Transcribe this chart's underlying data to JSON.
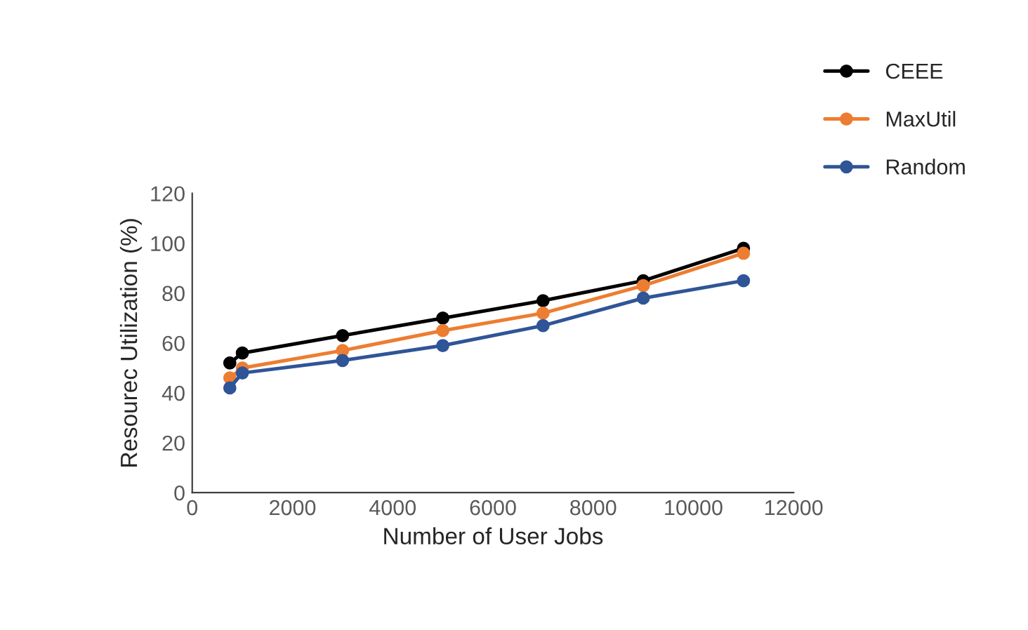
{
  "chart_data": {
    "type": "line",
    "xlabel": "Number of User Jobs",
    "ylabel": "Resourec Utilization (%)",
    "x": [
      750,
      1000,
      3000,
      5000,
      7000,
      9000,
      11000
    ],
    "series": [
      {
        "name": "CEEE",
        "color": "#000000",
        "values": [
          52,
          56,
          63,
          70,
          77,
          85,
          98
        ]
      },
      {
        "name": "MaxUtil",
        "color": "#ed7d31",
        "values": [
          46,
          50,
          57,
          65,
          72,
          83,
          96
        ]
      },
      {
        "name": "Random",
        "color": "#2f5597",
        "values": [
          42,
          48,
          53,
          59,
          67,
          78,
          85
        ]
      }
    ],
    "xlim": [
      0,
      12000
    ],
    "xticks": [
      0,
      2000,
      4000,
      6000,
      8000,
      10000,
      12000
    ],
    "ylim": [
      0,
      120
    ],
    "yticks": [
      0,
      20,
      40,
      60,
      80,
      100,
      120
    ],
    "grid": false,
    "legend": "top right",
    "marker": "circle",
    "line_style": "solid"
  }
}
